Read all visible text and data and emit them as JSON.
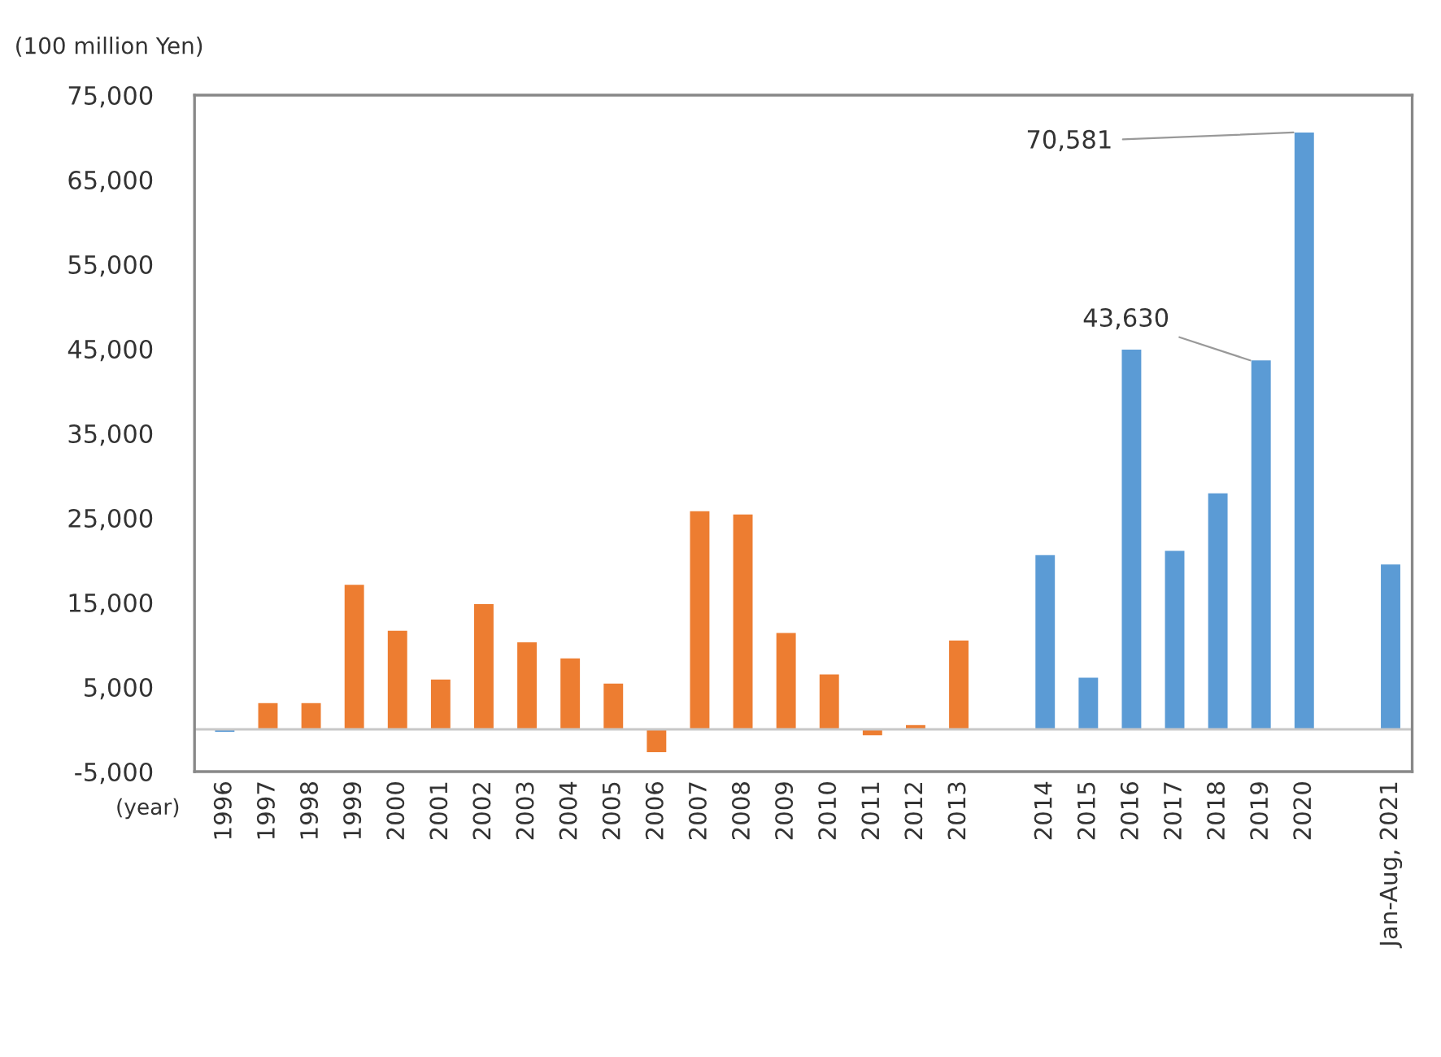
{
  "chart_data": {
    "type": "bar",
    "ylabel": "(100 million Yen)",
    "xlabel": "(year)",
    "categories": [
      "1996",
      "1997",
      "1998",
      "1999",
      "2000",
      "2001",
      "2002",
      "2003",
      "2004",
      "2005",
      "2006",
      "2007",
      "2008",
      "2009",
      "2010",
      "2011",
      "2012",
      "2013",
      null,
      "2014",
      "2015",
      "2016",
      "2017",
      "2018",
      "2019",
      "2020",
      null,
      "Jan-Aug, 2021"
    ],
    "values": [
      -300,
      3100,
      3100,
      17100,
      11650,
      5900,
      14800,
      10300,
      8400,
      5400,
      -2700,
      25800,
      25400,
      11400,
      6500,
      -700,
      500,
      10500,
      null,
      20600,
      6100,
      44900,
      21100,
      27900,
      43630,
      70581,
      null,
      19500
    ],
    "colors": [
      "#5b9bd5",
      "#ed7d31",
      "#ed7d31",
      "#ed7d31",
      "#ed7d31",
      "#ed7d31",
      "#ed7d31",
      "#ed7d31",
      "#ed7d31",
      "#ed7d31",
      "#ed7d31",
      "#ed7d31",
      "#ed7d31",
      "#ed7d31",
      "#ed7d31",
      "#ed7d31",
      "#ed7d31",
      "#ed7d31",
      null,
      "#5b9bd5",
      "#5b9bd5",
      "#5b9bd5",
      "#5b9bd5",
      "#5b9bd5",
      "#5b9bd5",
      "#5b9bd5",
      null,
      "#5b9bd5"
    ],
    "value_labels": [
      null,
      null,
      null,
      null,
      null,
      null,
      null,
      null,
      null,
      null,
      null,
      null,
      null,
      null,
      null,
      null,
      null,
      null,
      null,
      null,
      null,
      null,
      null,
      null,
      "43,630",
      "70,581",
      null,
      null
    ],
    "ylim": [
      -5000,
      75000
    ],
    "yticks": [
      {
        "value": -5000,
        "label": "-5,000"
      },
      {
        "value": 5000,
        "label": "5,000"
      },
      {
        "value": 15000,
        "label": "15,000"
      },
      {
        "value": 25000,
        "label": "25,000"
      },
      {
        "value": 35000,
        "label": "35,000"
      },
      {
        "value": 45000,
        "label": "45,000"
      },
      {
        "value": 55000,
        "label": "55,000"
      },
      {
        "value": 65000,
        "label": "65,000"
      },
      {
        "value": 75000,
        "label": "75,000"
      }
    ],
    "grid": false
  }
}
